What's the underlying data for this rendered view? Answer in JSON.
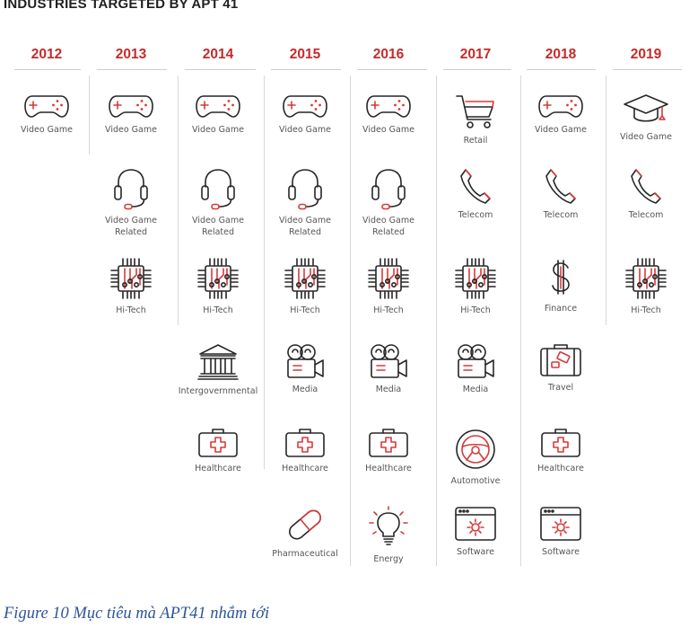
{
  "title": "INDUSTRIES TARGETED BY APT 41",
  "caption": "Figure 10 Mục tiêu mà APT41 nhắm tới",
  "colors": {
    "accent": "#c42b2b",
    "icon_line": "#262626",
    "caption": "#2e5597"
  },
  "columns": [
    {
      "year": "2012",
      "items": [
        {
          "icon": "gamepad-icon",
          "label": "Video Game"
        }
      ]
    },
    {
      "year": "2013",
      "items": [
        {
          "icon": "gamepad-icon",
          "label": "Video Game"
        },
        {
          "icon": "headset-icon",
          "label": "Video Game\nRelated"
        },
        {
          "icon": "chip-icon",
          "label": "Hi-Tech"
        }
      ]
    },
    {
      "year": "2014",
      "items": [
        {
          "icon": "gamepad-icon",
          "label": "Video Game"
        },
        {
          "icon": "headset-icon",
          "label": "Video Game\nRelated"
        },
        {
          "icon": "chip-icon",
          "label": "Hi-Tech"
        },
        {
          "icon": "government-building-icon",
          "label": "Intergovernmental"
        },
        {
          "icon": "medical-kit-icon",
          "label": "Healthcare"
        }
      ]
    },
    {
      "year": "2015",
      "items": [
        {
          "icon": "gamepad-icon",
          "label": "Video Game"
        },
        {
          "icon": "headset-icon",
          "label": "Video Game\nRelated"
        },
        {
          "icon": "chip-icon",
          "label": "Hi-Tech"
        },
        {
          "icon": "film-camera-icon",
          "label": "Media"
        },
        {
          "icon": "medical-kit-icon",
          "label": "Healthcare"
        },
        {
          "icon": "pill-icon",
          "label": "Pharmaceutical"
        }
      ]
    },
    {
      "year": "2016",
      "items": [
        {
          "icon": "gamepad-icon",
          "label": "Video Game"
        },
        {
          "icon": "headset-icon",
          "label": "Video Game\nRelated"
        },
        {
          "icon": "chip-icon",
          "label": "Hi-Tech"
        },
        {
          "icon": "film-camera-icon",
          "label": "Media"
        },
        {
          "icon": "medical-kit-icon",
          "label": "Healthcare"
        },
        {
          "icon": "light-bulb-icon",
          "label": "Energy"
        }
      ]
    },
    {
      "year": "2017",
      "items": [
        {
          "icon": "shopping-cart-icon",
          "label": "Retail"
        },
        {
          "icon": "telephone-icon",
          "label": "Telecom"
        },
        {
          "icon": "chip-icon",
          "label": "Hi-Tech"
        },
        {
          "icon": "film-camera-icon",
          "label": "Media"
        },
        {
          "icon": "steering-wheel-icon",
          "label": "Automotive"
        },
        {
          "icon": "software-window-icon",
          "label": "Software"
        }
      ]
    },
    {
      "year": "2018",
      "items": [
        {
          "icon": "gamepad-icon",
          "label": "Video Game"
        },
        {
          "icon": "telephone-icon",
          "label": "Telecom"
        },
        {
          "icon": "dollar-icon",
          "label": "Finance"
        },
        {
          "icon": "suitcase-icon",
          "label": "Travel"
        },
        {
          "icon": "medical-kit-icon",
          "label": "Healthcare"
        },
        {
          "icon": "software-window-icon",
          "label": "Software"
        }
      ]
    },
    {
      "year": "2019",
      "items": [
        {
          "icon": "graduation-cap-icon",
          "label": "Video Game"
        },
        {
          "icon": "telephone-icon",
          "label": "Telecom"
        },
        {
          "icon": "chip-icon",
          "label": "Hi-Tech"
        }
      ]
    }
  ]
}
